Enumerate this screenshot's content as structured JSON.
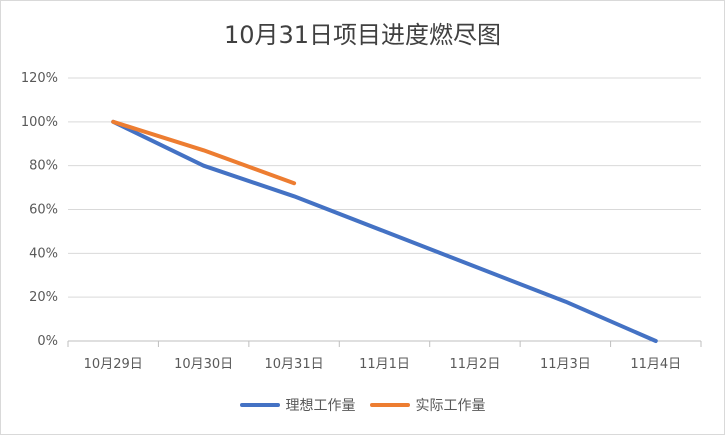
{
  "chart_data": {
    "type": "line",
    "title": "10月31日项目进度燃尽图",
    "categories": [
      "10月29日",
      "10月30日",
      "10月31日",
      "11月1日",
      "11月2日",
      "11月3日",
      "11月4日"
    ],
    "yticks": [
      "0%",
      "20%",
      "40%",
      "60%",
      "80%",
      "100%",
      "120%"
    ],
    "ylim": [
      0,
      120
    ],
    "grid": true,
    "legend_position": "bottom",
    "series": [
      {
        "name": "理想工作量",
        "color": "#4472c4",
        "values": [
          100,
          80,
          66,
          50,
          34,
          18,
          0
        ]
      },
      {
        "name": "实际工作量",
        "color": "#ed7d31",
        "values": [
          100,
          87,
          72,
          null,
          null,
          null,
          null
        ]
      }
    ]
  }
}
